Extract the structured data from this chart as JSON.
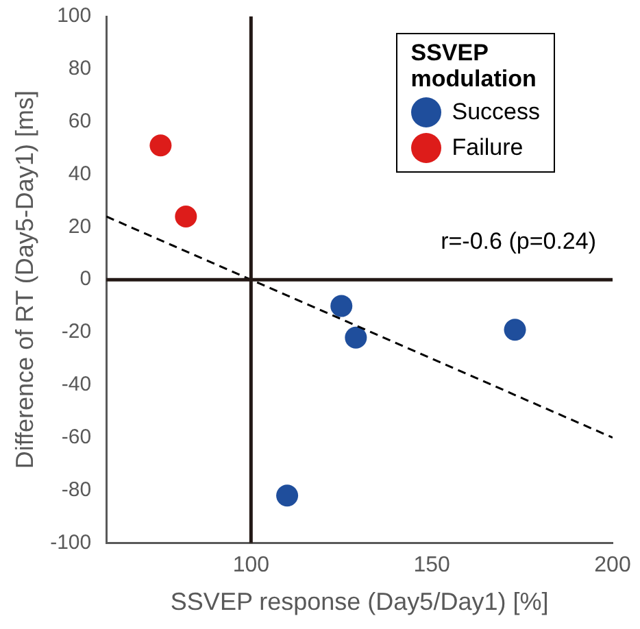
{
  "chart_data": {
    "type": "scatter",
    "xlabel": "SSVEP response (Day5/Day1) [%]",
    "ylabel": "Difference of RT (Day5-Day1) [ms]",
    "legend_title": "SSVEP modulation",
    "legend": "top right",
    "marker": "circle",
    "grid": false,
    "xlim": [
      60,
      200
    ],
    "xticks": [
      100,
      150,
      200
    ],
    "ylim": [
      -100,
      100
    ],
    "yticks": [
      -100,
      -80,
      -60,
      -40,
      -20,
      0,
      20,
      40,
      60,
      80,
      100
    ],
    "series": [
      {
        "name": "Success",
        "color": "#1f4e9c",
        "x": [
          110,
          125,
          129,
          173
        ],
        "values": [
          -82,
          -10,
          -22,
          -19
        ]
      },
      {
        "name": "Failure",
        "color": "#dd1c1a",
        "x": [
          75,
          82
        ],
        "values": [
          51,
          24
        ]
      },
      {
        "type": "line",
        "color": "#000000",
        "line_style": "dashed",
        "marker": "none",
        "x": [
          60,
          200
        ],
        "values": [
          24,
          -60
        ]
      }
    ],
    "ref_lines": [
      {
        "axis": "x",
        "value": 100,
        "color": "#231815"
      },
      {
        "axis": "y",
        "value": 0,
        "color": "#231815"
      }
    ],
    "annotations": [
      "r=-0.6 (p=0.24)"
    ]
  }
}
